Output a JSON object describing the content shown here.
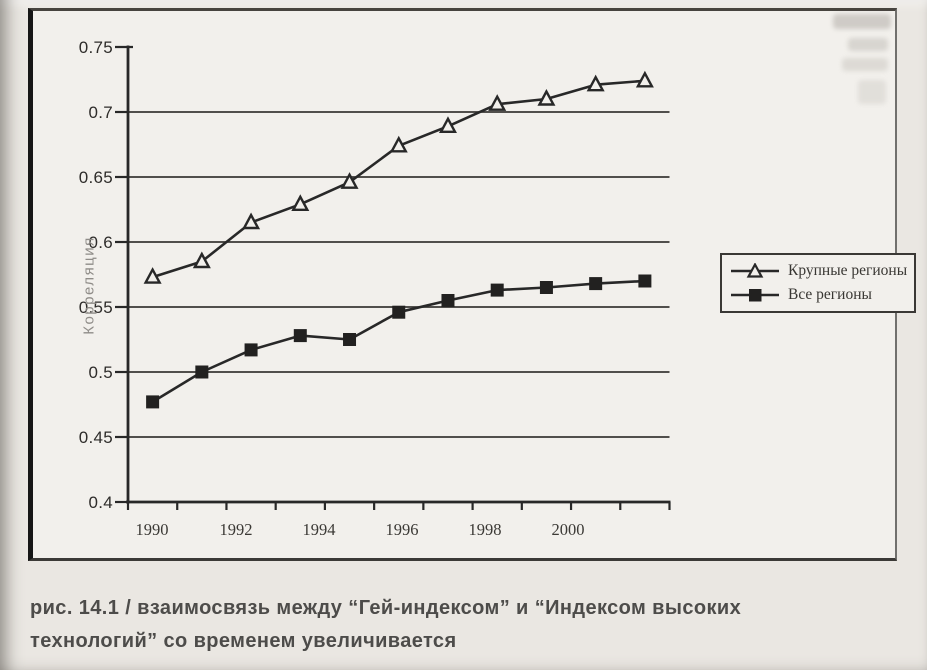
{
  "caption": {
    "line1": "рис. 14.1 / взаимосвязь между “Гей-индексом” и “Индексом высоких",
    "line2": "технологий” со временем увеличивается"
  },
  "colors": {
    "ink": "#282828",
    "paper": "#eae7e2",
    "plot_paper": "#f2f0ec",
    "muted_axis_title": "#8f8c88",
    "caption_text": "#4d4c4a"
  },
  "chart_data": {
    "type": "line",
    "title": "",
    "xlabel": "",
    "ylabel": "Корреляция",
    "x": [
      1990,
      1991,
      1992,
      1993,
      1994,
      1995,
      1996,
      1997,
      1998,
      1999,
      2000
    ],
    "x_tick_labels": [
      "1990",
      "1992",
      "1994",
      "1996",
      "1998",
      "2000"
    ],
    "series": [
      {
        "name": "Крупные регионы",
        "marker": "open-triangle",
        "values": [
          0.573,
          0.585,
          0.615,
          0.629,
          0.646,
          0.674,
          0.689,
          0.706,
          0.71,
          0.721,
          0.724
        ]
      },
      {
        "name": "Все регионы",
        "marker": "filled-square",
        "values": [
          0.477,
          0.5,
          0.517,
          0.528,
          0.525,
          0.546,
          0.555,
          0.563,
          0.565,
          0.568,
          0.57
        ]
      }
    ],
    "ylim": [
      0.4,
      0.75
    ],
    "yticks": [
      0.4,
      0.45,
      0.5,
      0.55,
      0.6,
      0.65,
      0.7,
      0.75
    ],
    "grid": "horizontal",
    "legend_position": "right-inside"
  }
}
